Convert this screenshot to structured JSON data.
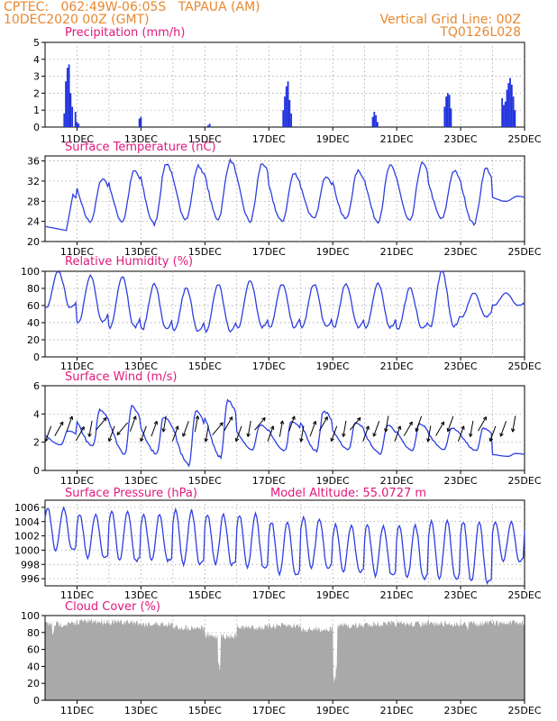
{
  "header": {
    "line1_left": "CPTEC:   062:49W-06:05S   TAPAUA (AM)",
    "line2_left": "10DEC2020 00Z (GMT)",
    "line2_right": "Vertical Grid Line: 00Z",
    "line3_right": "TQ0126L028"
  },
  "colors": {
    "line": "#2e3fe0",
    "bar": "#2233dd",
    "cloud": "#a9a9a9",
    "title": "#e0197d",
    "header": "#e8892f",
    "grid": "#999999"
  },
  "x_tick_labels": [
    "11DEC",
    "13DEC",
    "15DEC",
    "17DEC",
    "19DEC",
    "21DEC",
    "23DEC",
    "25DEC"
  ],
  "chart_data": [
    {
      "type": "bar",
      "title": "Precipitation (mm/h)",
      "ylim": [
        0,
        5
      ],
      "yticks": [
        0,
        1,
        2,
        3,
        4,
        5
      ],
      "x_range_days": [
        10,
        25
      ],
      "series": [
        {
          "values": [
            [
              10.6,
              0.8
            ],
            [
              10.65,
              2.7
            ],
            [
              10.7,
              3.5
            ],
            [
              10.75,
              3.7
            ],
            [
              10.8,
              2.0
            ],
            [
              10.85,
              1.2
            ],
            [
              10.95,
              0.9
            ],
            [
              11.0,
              0.3
            ],
            [
              11.05,
              0.2
            ],
            [
              12.95,
              0.5
            ],
            [
              13.0,
              0.6
            ],
            [
              15.1,
              0.1
            ],
            [
              15.15,
              0.2
            ],
            [
              17.45,
              1.0
            ],
            [
              17.5,
              1.8
            ],
            [
              17.55,
              2.4
            ],
            [
              17.6,
              2.7
            ],
            [
              17.65,
              1.6
            ],
            [
              17.7,
              0.8
            ],
            [
              20.25,
              0.6
            ],
            [
              20.3,
              0.9
            ],
            [
              20.35,
              0.7
            ],
            [
              20.4,
              0.3
            ],
            [
              22.5,
              1.2
            ],
            [
              22.55,
              1.8
            ],
            [
              22.6,
              2.0
            ],
            [
              22.65,
              1.9
            ],
            [
              22.7,
              1.1
            ],
            [
              24.3,
              1.7
            ],
            [
              24.35,
              1.3
            ],
            [
              24.4,
              1.5
            ],
            [
              24.45,
              2.2
            ],
            [
              24.5,
              2.6
            ],
            [
              24.55,
              2.9
            ],
            [
              24.6,
              2.5
            ],
            [
              24.65,
              1.8
            ],
            [
              24.7,
              1.0
            ]
          ]
        }
      ]
    },
    {
      "type": "line",
      "title": "Surface Temperature (nC)",
      "ylim": [
        20,
        37
      ],
      "yticks": [
        20,
        24,
        28,
        32,
        36
      ],
      "daily_max": [
        29.5,
        32.5,
        34,
        35.5,
        35,
        36,
        35.5,
        33.5,
        33,
        34,
        35,
        35.5,
        34,
        34.5,
        29
      ],
      "daily_min": [
        24.5,
        24,
        24,
        23.5,
        24.5,
        24.5,
        24,
        24,
        24.5,
        24.5,
        24,
        24,
        24.5,
        23.5,
        28
      ]
    },
    {
      "type": "line",
      "title": "Relative Humidity (%)",
      "ylim": [
        0,
        100
      ],
      "yticks": [
        0,
        20,
        40,
        60,
        80,
        100
      ],
      "daily_max": [
        100,
        95,
        95,
        85,
        80,
        85,
        90,
        85,
        85,
        85,
        85,
        80,
        100,
        75,
        75
      ],
      "daily_min": [
        57,
        40,
        35,
        32,
        30,
        30,
        35,
        35,
        35,
        35,
        35,
        33,
        35,
        47,
        60
      ]
    },
    {
      "type": "line",
      "title": "Surface Wind (m/s)",
      "ylim": [
        0,
        6
      ],
      "yticks": [
        0,
        2,
        4,
        6
      ],
      "daily_max": [
        2.8,
        4.3,
        4.5,
        3.8,
        4.2,
        5.0,
        3.2,
        3.5,
        4.2,
        3.4,
        3.2,
        3.3,
        3.0,
        3.0,
        1.2
      ],
      "daily_min": [
        1.8,
        1.7,
        1.2,
        1.2,
        0.4,
        1.0,
        1.5,
        1.4,
        1.4,
        1.5,
        1.2,
        1.4,
        1.5,
        1.4,
        1.0
      ],
      "arrow_dirs_deg": [
        200,
        30,
        20,
        30,
        190,
        40,
        200,
        220,
        20,
        200,
        20,
        190,
        20,
        200,
        10,
        190,
        40,
        30,
        200,
        190,
        40,
        20,
        10,
        20,
        190,
        20,
        30,
        200,
        190,
        40,
        20,
        200,
        190,
        20,
        30,
        200,
        190,
        30,
        200,
        20,
        190,
        30,
        200,
        200,
        190
      ]
    },
    {
      "type": "line",
      "title": "Surface Pressure (hPa)",
      "annotation": "Model Altitude: 55.0727 m",
      "ylim": [
        995,
        1007
      ],
      "yticks": [
        996,
        998,
        1000,
        1002,
        1004,
        1006
      ],
      "daily_max": [
        1006,
        1005,
        1005.5,
        1005,
        1005.5,
        1005,
        1005,
        1004,
        1004.5,
        1003.5,
        1003.5,
        1003.5,
        1004,
        1004,
        1004
      ],
      "daily_min": [
        1000,
        999,
        998.5,
        998.5,
        998,
        998,
        997.5,
        996.5,
        997.5,
        997,
        996.5,
        996,
        996,
        995.5,
        998.5
      ]
    },
    {
      "type": "area",
      "title": "Cloud Cover (%)",
      "ylim": [
        0,
        100
      ],
      "yticks": [
        0,
        20,
        40,
        60,
        80,
        100
      ],
      "daily_level": [
        94,
        97,
        96,
        94,
        90,
        80,
        90,
        92,
        88,
        92,
        94,
        94,
        94,
        95,
        95
      ],
      "dips": [
        [
          10.0,
          100
        ],
        [
          10.25,
          75
        ],
        [
          15.45,
          35
        ],
        [
          19.05,
          20
        ],
        [
          19.1,
          35
        ],
        [
          23.2,
          80
        ]
      ]
    }
  ]
}
